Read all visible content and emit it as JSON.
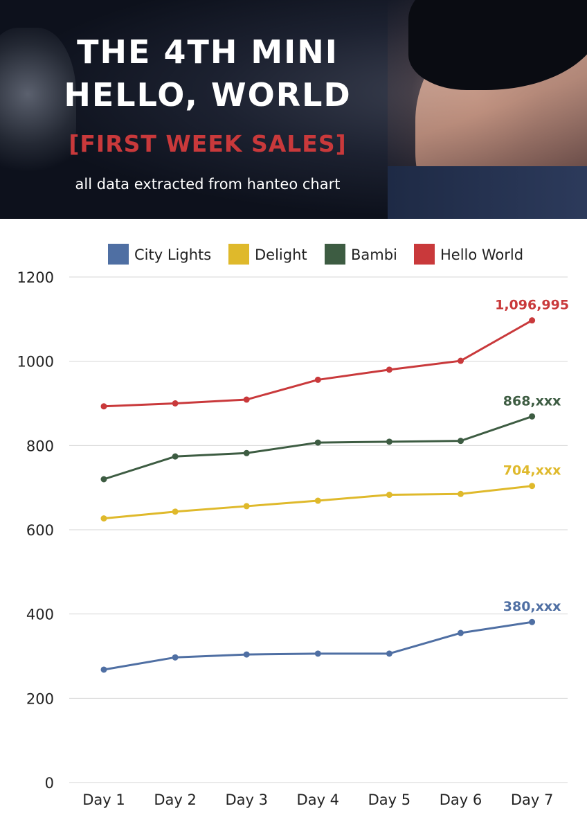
{
  "header": {
    "title_line1": "THE 4TH MINI",
    "title_line2": "HELLO, WORLD",
    "subtitle": "[FIRST WEEK SALES]",
    "source_note": "all data extracted from hanteo chart"
  },
  "chart_data": {
    "type": "line",
    "title": "",
    "xlabel": "",
    "ylabel": "",
    "categories": [
      "Day 1",
      "Day 2",
      "Day 3",
      "Day 4",
      "Day 5",
      "Day 6",
      "Day 7"
    ],
    "ylim": [
      0,
      1200
    ],
    "yticks": [
      0,
      200,
      400,
      600,
      800,
      1000,
      1200
    ],
    "grid": true,
    "legend_position": "top",
    "series": [
      {
        "name": "City Lights",
        "color": "#4f6fa3",
        "values": [
          268,
          297,
          304,
          306,
          306,
          355,
          381
        ],
        "end_label": "380,xxx"
      },
      {
        "name": "Delight",
        "color": "#dfb92b",
        "values": [
          627,
          643,
          656,
          669,
          683,
          685,
          704
        ],
        "end_label": "704,xxx"
      },
      {
        "name": "Bambi",
        "color": "#3d5c42",
        "values": [
          720,
          774,
          782,
          807,
          809,
          811,
          869
        ],
        "end_label": "868,xxx"
      },
      {
        "name": "Hello World",
        "color": "#c9393b",
        "values": [
          893,
          900,
          909,
          956,
          980,
          1001,
          1097
        ],
        "end_label": "1,096,995"
      }
    ]
  }
}
